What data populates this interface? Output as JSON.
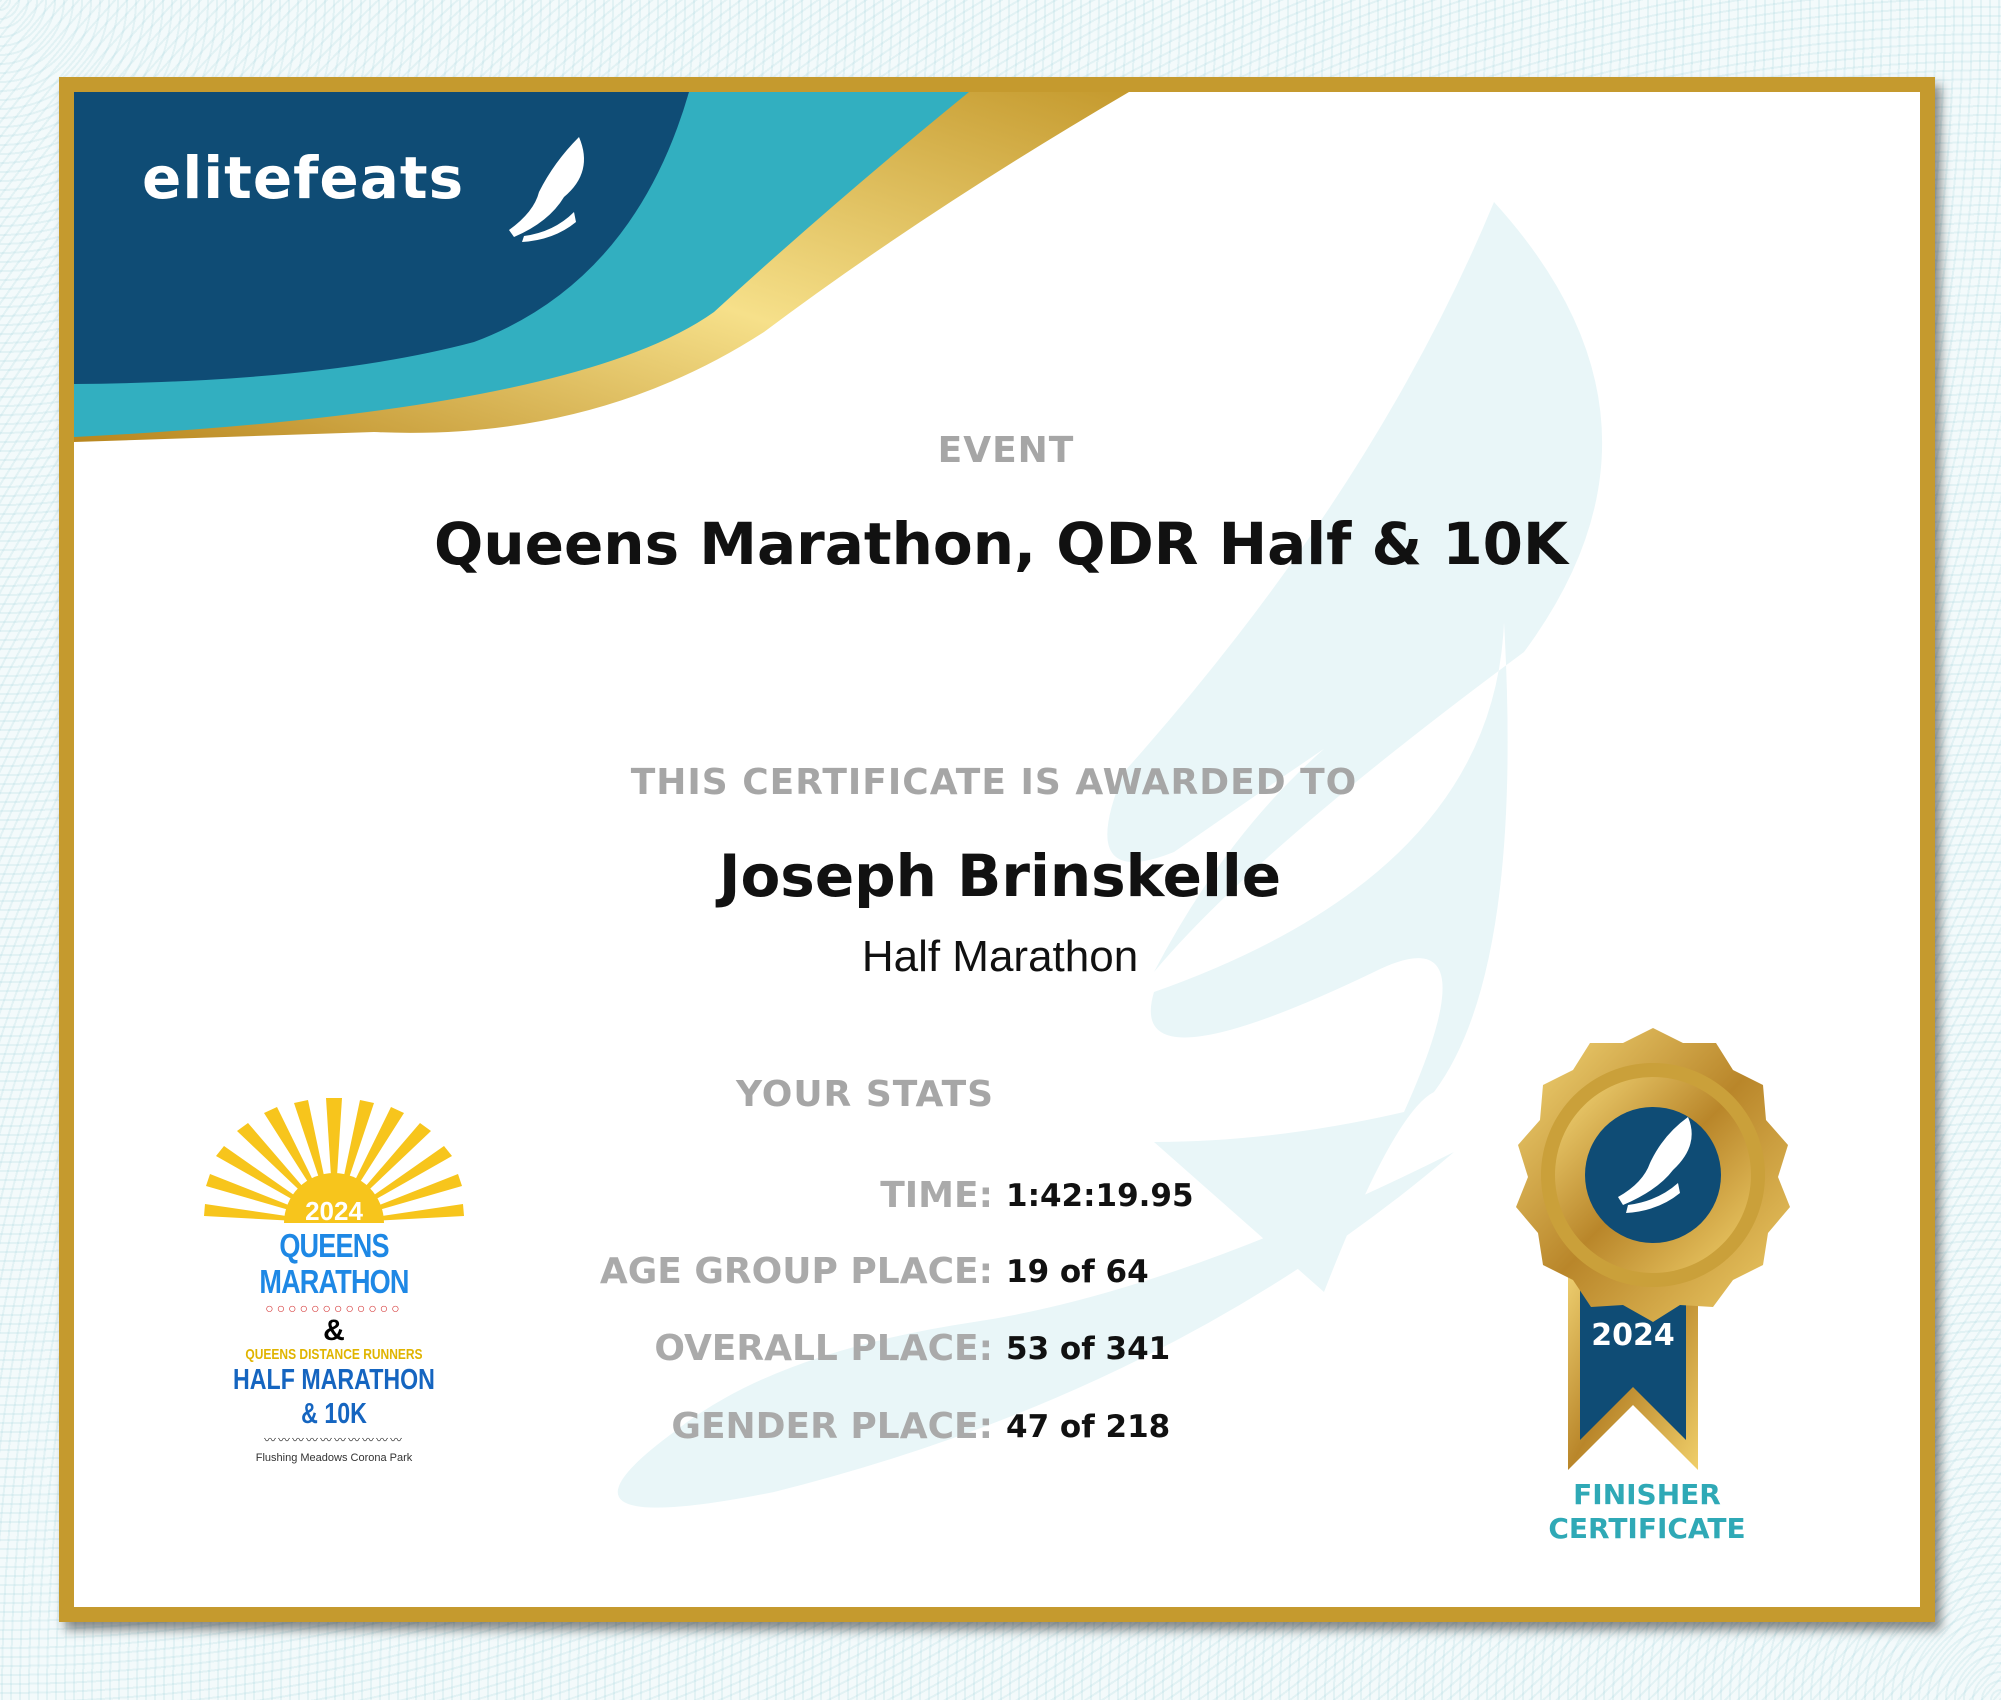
{
  "brand": {
    "logo_text": "elitefeats",
    "colors": {
      "navy": "#0f4c75",
      "teal": "#32afc0",
      "gold": "#c59a2e"
    }
  },
  "event": {
    "label": "EVENT",
    "name": "Queens Marathon, QDR Half & 10K"
  },
  "award": {
    "label": "THIS CERTIFICATE IS AWARDED TO",
    "recipient": "Joseph Brinskelle",
    "race": "Half Marathon"
  },
  "stats": {
    "label": "YOUR STATS",
    "rows": [
      {
        "label": "TIME:",
        "value": "1:42:19.95"
      },
      {
        "label": "AGE GROUP PLACE:",
        "value": "19 of 64"
      },
      {
        "label": "OVERALL PLACE:",
        "value": "53 of 341"
      },
      {
        "label": "GENDER PLACE:",
        "value": "47 of 218"
      }
    ]
  },
  "event_logo": {
    "year": "2024",
    "arc_text": "QUEENS DISTANCE RUNNERS",
    "line1": "QUEENS MARATHON",
    "amp": "&",
    "line2": "QUEENS DISTANCE RUNNERS",
    "line3": "HALF MARATHON & 10K",
    "location": "Flushing Meadows Corona Park"
  },
  "badge": {
    "year": "2024",
    "line1": "FINISHER",
    "line2": "CERTIFICATE",
    "icon": "winged-shoe-icon"
  }
}
